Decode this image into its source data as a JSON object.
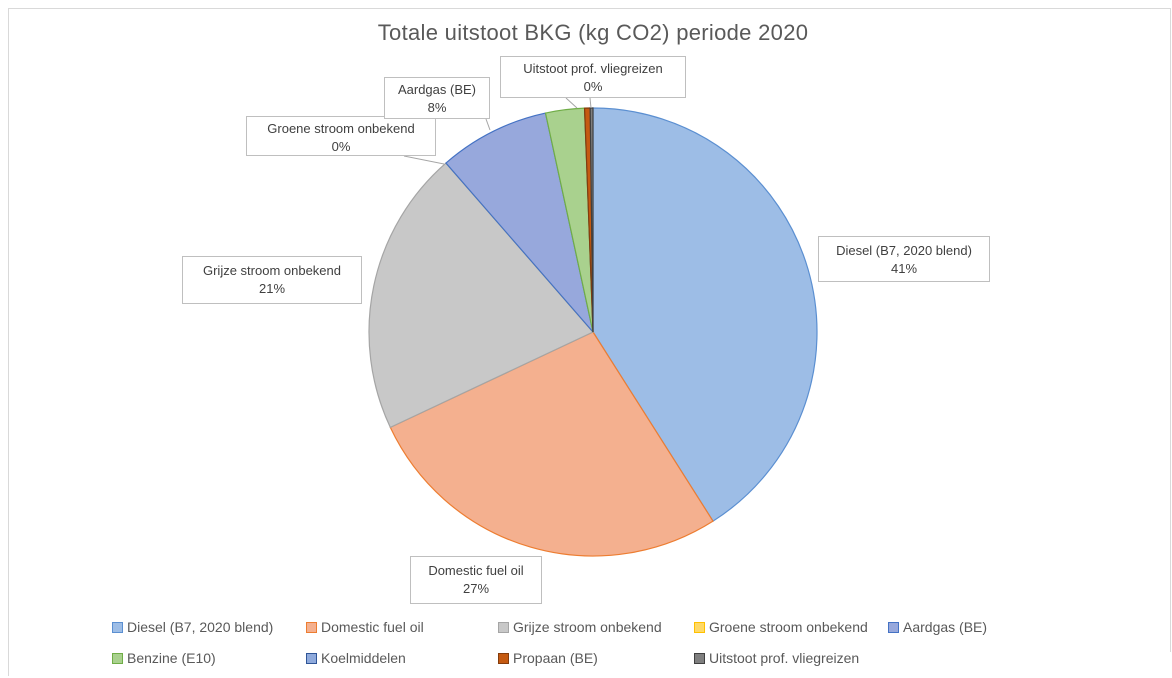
{
  "chart_data": {
    "type": "pie",
    "title": "Totale uitstoot BKG (kg CO2) periode 2020",
    "slices": [
      {
        "name": "Diesel (B7, 2020 blend)",
        "value": 41.0,
        "label_pct": "41%",
        "color": "#9dbde6",
        "stroke": "#5b8fd1"
      },
      {
        "name": "Domestic fuel oil",
        "value": 27.0,
        "label_pct": "27%",
        "color": "#f4b08f",
        "stroke": "#ed7d31"
      },
      {
        "name": "Grijze stroom onbekend",
        "value": 20.6,
        "label_pct": "21%",
        "color": "#c8c8c8",
        "stroke": "#a5a5a5"
      },
      {
        "name": "Groene stroom onbekend",
        "value": 0.0,
        "label_pct": "0%",
        "color": "#ffd966",
        "stroke": "#ffc000"
      },
      {
        "name": "Aardgas (BE)",
        "value": 8.0,
        "label_pct": "8%",
        "color": "#97a8dc",
        "stroke": "#4472c4"
      },
      {
        "name": "Benzine (E10)",
        "value": 2.8,
        "label_pct": "",
        "color": "#a9d18e",
        "stroke": "#70ad47"
      },
      {
        "name": "Koelmiddelen",
        "value": 0.0,
        "label_pct": "",
        "color": "#8faadc",
        "stroke": "#2f5597"
      },
      {
        "name": "Propaan (BE)",
        "value": 0.4,
        "label_pct": "",
        "color": "#c55a11",
        "stroke": "#843c0c"
      },
      {
        "name": "Uitstoot prof. vliegreizen",
        "value": 0.2,
        "label_pct": "0%",
        "color": "#7f7f7f",
        "stroke": "#404040"
      }
    ]
  },
  "labels": {
    "diesel": {
      "name": "Diesel (B7, 2020 blend)",
      "pct": "41%"
    },
    "fuel": {
      "name": "Domestic fuel oil",
      "pct": "27%"
    },
    "grijze": {
      "name": "Grijze stroom onbekend",
      "pct": "21%"
    },
    "groene": {
      "name": "Groene stroom onbekend",
      "pct": "0%"
    },
    "aardgas": {
      "name": "Aardgas (BE)",
      "pct": "8%"
    },
    "vlieg": {
      "name": "Uitstoot prof. vliegreizen",
      "pct": "0%"
    }
  }
}
